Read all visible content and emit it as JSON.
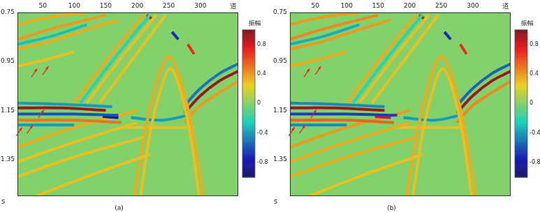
{
  "chart_data": [
    {
      "type": "line",
      "title": "(a)",
      "x_label": "道",
      "y_label": "s",
      "grid": false,
      "xlim": [
        10,
        360
      ],
      "xticks": [
        50,
        100,
        150,
        200,
        250,
        300
      ],
      "ylim": [
        0.75,
        1.5
      ],
      "yticks": [
        0.75,
        0.95,
        1.15,
        1.35
      ],
      "colorbar": {
        "label": "振幅",
        "range": [
          -1,
          1
        ],
        "ticks": [
          -0.8,
          -0.4,
          0,
          0.4,
          0.8
        ]
      },
      "arrows": [
        {
          "x": 41,
          "y": 0.98
        },
        {
          "x": 59,
          "y": 0.97
        },
        {
          "x": 52,
          "y": 1.147
        },
        {
          "x": 17,
          "y": 1.22
        },
        {
          "x": 34,
          "y": 1.21
        }
      ],
      "series": [
        {
          "x": [
            10,
            60,
            120
          ],
          "values": [
            0.8,
            0.77,
            0.75
          ],
          "amplitude": 0.35
        },
        {
          "x": [
            10,
            60,
            120,
            150
          ],
          "values": [
            0.86,
            0.82,
            0.78,
            0.76
          ],
          "amplitude": 0.4
        },
        {
          "x": [
            10,
            60,
            120
          ],
          "values": [
            0.88,
            0.85,
            0.8
          ],
          "amplitude": -0.3
        },
        {
          "x": [
            10,
            60,
            120,
            170
          ],
          "values": [
            0.9,
            0.87,
            0.82,
            0.78
          ],
          "amplitude": 0.35
        },
        {
          "x": [
            10,
            60,
            100
          ],
          "values": [
            0.97,
            0.94,
            0.91
          ],
          "amplitude": 0.3
        },
        {
          "x": [
            10,
            80,
            160
          ],
          "values": [
            1.12,
            1.125,
            1.135
          ],
          "amplitude": -0.4
        },
        {
          "x": [
            10,
            80,
            150
          ],
          "values": [
            1.14,
            1.14,
            1.15
          ],
          "amplitude": 0.95
        },
        {
          "x": [
            10,
            100,
            170
          ],
          "values": [
            1.165,
            1.165,
            1.17
          ],
          "amplitude": -0.6
        },
        {
          "x": [
            10,
            100,
            175
          ],
          "values": [
            1.19,
            1.19,
            1.2
          ],
          "amplitude": 0.5
        },
        {
          "x": [
            10,
            100
          ],
          "values": [
            1.21,
            1.21
          ],
          "amplitude": -0.4
        },
        {
          "x": [
            145,
            170
          ],
          "values": [
            1.175,
            1.18
          ],
          "amplitude": -0.8
        },
        {
          "x": [
            100,
            150,
            210
          ],
          "values": [
            1.12,
            0.95,
            0.76
          ],
          "amplitude": 0.35
        },
        {
          "x": [
            110,
            160,
            220
          ],
          "values": [
            1.12,
            0.95,
            0.76
          ],
          "amplitude": -0.2
        },
        {
          "x": [
            120,
            170,
            230
          ],
          "values": [
            1.12,
            0.95,
            0.76
          ],
          "amplitude": 0.3
        },
        {
          "x": [
            140,
            190,
            245
          ],
          "values": [
            1.12,
            0.95,
            0.76
          ],
          "amplitude": 0.3
        },
        {
          "x": [
            10,
            100,
            200
          ],
          "values": [
            1.3,
            1.22,
            1.15
          ],
          "amplitude": 0.35
        },
        {
          "x": [
            10,
            100,
            200
          ],
          "values": [
            1.36,
            1.28,
            1.2
          ],
          "amplitude": 0.3
        },
        {
          "x": [
            10,
            100,
            210
          ],
          "values": [
            1.42,
            1.34,
            1.26
          ],
          "amplitude": 0.3
        },
        {
          "x": [
            40,
            120,
            220
          ],
          "values": [
            1.5,
            1.42,
            1.33
          ],
          "amplitude": 0.3
        },
        {
          "x": [
            195,
            215,
            235,
            250,
            265,
            285,
            305
          ],
          "values": [
            1.5,
            1.2,
            1.0,
            0.93,
            1.0,
            1.2,
            1.5
          ],
          "amplitude": 0.35
        },
        {
          "x": [
            205,
            222,
            240,
            252,
            265,
            282,
            298
          ],
          "values": [
            1.5,
            1.22,
            1.04,
            0.98,
            1.04,
            1.22,
            1.5
          ],
          "amplitude": 0.3
        },
        {
          "x": [
            190,
            240,
            280
          ],
          "values": [
            1.18,
            1.19,
            1.17
          ],
          "amplitude": -0.4
        },
        {
          "x": [
            180,
            290
          ],
          "values": [
            1.22,
            1.22
          ],
          "amplitude": 0.3
        },
        {
          "x": [
            215,
            225
          ],
          "values": [
            0.76,
            0.78
          ],
          "amplitude": 0.8
        },
        {
          "x": [
            255,
            265
          ],
          "values": [
            0.83,
            0.86
          ],
          "amplitude": -0.7
        },
        {
          "x": [
            280,
            290
          ],
          "values": [
            0.88,
            0.92
          ],
          "amplitude": 0.7
        },
        {
          "x": [
            275,
            300,
            330,
            360
          ],
          "values": [
            1.13,
            1.06,
            1.0,
            0.96
          ],
          "amplitude": -0.5
        },
        {
          "x": [
            275,
            300,
            330,
            360
          ],
          "values": [
            1.16,
            1.09,
            1.03,
            0.99
          ],
          "amplitude": 0.95
        },
        {
          "x": [
            275,
            300,
            360
          ],
          "values": [
            1.2,
            1.13,
            1.03
          ],
          "amplitude": 0.4
        }
      ]
    },
    {
      "type": "line",
      "title": "(b)",
      "x_label": "道",
      "y_label": "s",
      "grid": false,
      "xlim": [
        10,
        360
      ],
      "xticks": [
        50,
        100,
        150,
        200,
        250,
        300
      ],
      "ylim": [
        0.75,
        1.5
      ],
      "yticks": [
        0.75,
        0.95,
        1.15,
        1.35
      ],
      "colorbar": {
        "label": "振幅",
        "range": [
          -1,
          1
        ],
        "ticks": [
          -0.8,
          -0.4,
          0,
          0.4,
          0.8
        ]
      },
      "arrows": [
        {
          "x": 41,
          "y": 0.98
        },
        {
          "x": 59,
          "y": 0.97
        },
        {
          "x": 52,
          "y": 1.147
        },
        {
          "x": 17,
          "y": 1.22
        },
        {
          "x": 34,
          "y": 1.21
        }
      ],
      "series": [
        {
          "x": [
            10,
            60,
            120
          ],
          "values": [
            0.8,
            0.77,
            0.75
          ],
          "amplitude": 0.4
        },
        {
          "x": [
            10,
            60,
            120,
            150
          ],
          "values": [
            0.86,
            0.82,
            0.78,
            0.76
          ],
          "amplitude": 0.45
        },
        {
          "x": [
            10,
            60,
            120
          ],
          "values": [
            0.88,
            0.85,
            0.8
          ],
          "amplitude": -0.35
        },
        {
          "x": [
            10,
            60,
            120,
            170
          ],
          "values": [
            0.9,
            0.87,
            0.82,
            0.78
          ],
          "amplitude": 0.4
        },
        {
          "x": [
            10,
            60,
            100
          ],
          "values": [
            0.97,
            0.94,
            0.91
          ],
          "amplitude": 0.35
        },
        {
          "x": [
            10,
            80,
            160
          ],
          "values": [
            1.12,
            1.125,
            1.135
          ],
          "amplitude": -0.45
        },
        {
          "x": [
            10,
            80,
            160
          ],
          "values": [
            1.14,
            1.14,
            1.15
          ],
          "amplitude": 0.95
        },
        {
          "x": [
            10,
            100,
            180
          ],
          "values": [
            1.165,
            1.165,
            1.17
          ],
          "amplitude": -0.65
        },
        {
          "x": [
            10,
            100,
            175
          ],
          "values": [
            1.19,
            1.19,
            1.2
          ],
          "amplitude": 0.55
        },
        {
          "x": [
            10,
            100
          ],
          "values": [
            1.21,
            1.21
          ],
          "amplitude": -0.45
        },
        {
          "x": [
            145,
            170
          ],
          "values": [
            1.175,
            1.18
          ],
          "amplitude": 0.8
        },
        {
          "x": [
            100,
            150,
            210
          ],
          "values": [
            1.12,
            0.95,
            0.76
          ],
          "amplitude": 0.35
        },
        {
          "x": [
            110,
            160,
            220
          ],
          "values": [
            1.12,
            0.95,
            0.76
          ],
          "amplitude": -0.2
        },
        {
          "x": [
            120,
            170,
            230
          ],
          "values": [
            1.12,
            0.95,
            0.76
          ],
          "amplitude": 0.3
        },
        {
          "x": [
            140,
            190,
            245
          ],
          "values": [
            1.12,
            0.95,
            0.76
          ],
          "amplitude": 0.3
        },
        {
          "x": [
            10,
            100,
            200
          ],
          "values": [
            1.3,
            1.22,
            1.15
          ],
          "amplitude": 0.4
        },
        {
          "x": [
            10,
            100,
            200
          ],
          "values": [
            1.36,
            1.28,
            1.2
          ],
          "amplitude": 0.35
        },
        {
          "x": [
            10,
            100,
            210
          ],
          "values": [
            1.42,
            1.34,
            1.26
          ],
          "amplitude": 0.35
        },
        {
          "x": [
            40,
            120,
            220
          ],
          "values": [
            1.5,
            1.42,
            1.33
          ],
          "amplitude": 0.3
        },
        {
          "x": [
            195,
            215,
            235,
            250,
            265,
            285,
            305
          ],
          "values": [
            1.5,
            1.2,
            1.0,
            0.93,
            1.0,
            1.2,
            1.5
          ],
          "amplitude": 0.35
        },
        {
          "x": [
            205,
            222,
            240,
            252,
            265,
            282,
            298
          ],
          "values": [
            1.5,
            1.22,
            1.04,
            0.98,
            1.04,
            1.22,
            1.5
          ],
          "amplitude": 0.3
        },
        {
          "x": [
            190,
            240,
            280
          ],
          "values": [
            1.18,
            1.19,
            1.17
          ],
          "amplitude": -0.4
        },
        {
          "x": [
            180,
            290
          ],
          "values": [
            1.22,
            1.22
          ],
          "amplitude": 0.3
        },
        {
          "x": [
            215,
            225
          ],
          "values": [
            0.76,
            0.78
          ],
          "amplitude": 0.8
        },
        {
          "x": [
            255,
            265
          ],
          "values": [
            0.83,
            0.86
          ],
          "amplitude": -0.7
        },
        {
          "x": [
            280,
            290
          ],
          "values": [
            0.88,
            0.92
          ],
          "amplitude": 0.7
        },
        {
          "x": [
            275,
            300,
            330,
            360
          ],
          "values": [
            1.13,
            1.06,
            1.0,
            0.96
          ],
          "amplitude": -0.55
        },
        {
          "x": [
            275,
            300,
            330,
            360
          ],
          "values": [
            1.16,
            1.09,
            1.03,
            0.99
          ],
          "amplitude": 0.95
        },
        {
          "x": [
            275,
            300,
            360
          ],
          "values": [
            1.2,
            1.13,
            1.03
          ],
          "amplitude": 0.45
        }
      ]
    }
  ]
}
